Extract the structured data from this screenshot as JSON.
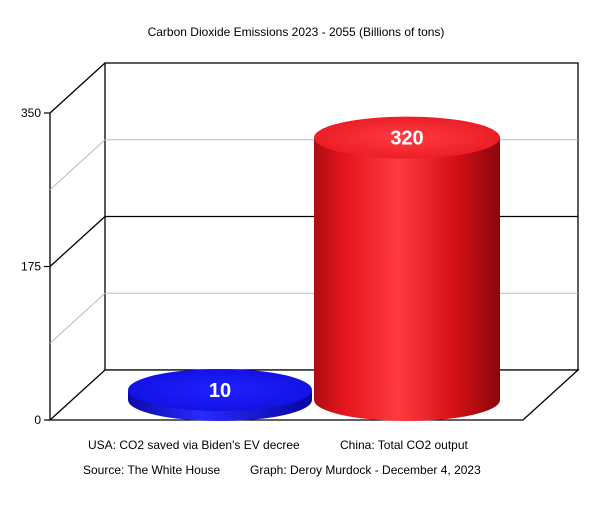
{
  "chart_data": {
    "type": "bar",
    "title": "Carbon Dioxide Emissions 2023 - 2055 (Billions of tons)",
    "categories": [
      "USA: CO2 saved via Biden's EV decree",
      "China: Total CO2 output"
    ],
    "values": [
      10,
      320
    ],
    "data_labels": [
      "10",
      "320"
    ],
    "colors": [
      "#1414e6",
      "#e8161e"
    ],
    "ylim": [
      0,
      350
    ],
    "yticks": [
      "0",
      "175",
      "350"
    ],
    "grid": true,
    "style": "3d-cylinder",
    "source": "Source: The White House",
    "credit": "Graph: Deroy Murdock - December 4, 2023"
  }
}
